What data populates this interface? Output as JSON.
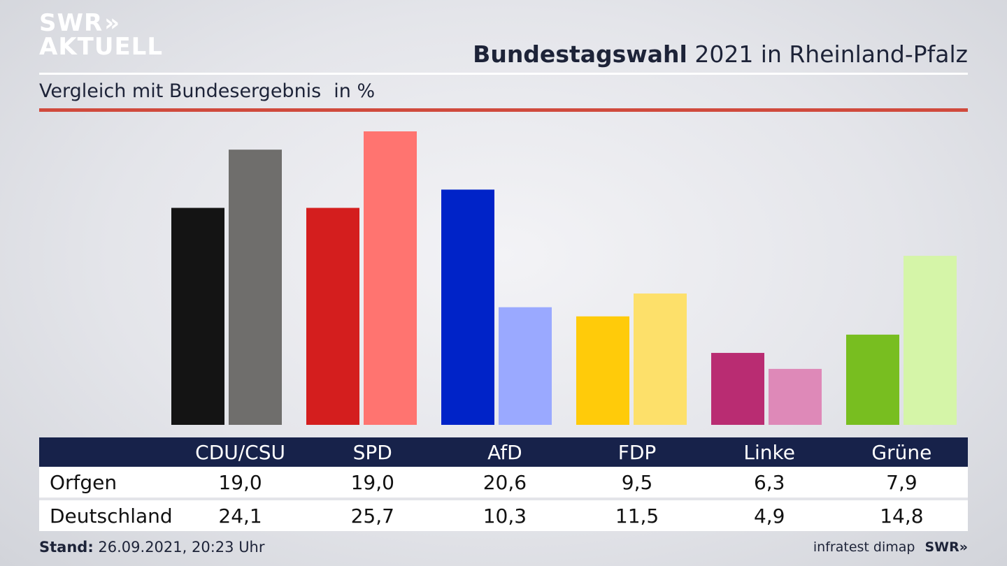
{
  "brand": {
    "logo_line1": "SWR",
    "logo_line2": "AKTUELL",
    "logo_arrows": "»"
  },
  "header": {
    "title_bold": "Bundestagswahl",
    "title_rest": "2021 in Rheinland-Pfalz",
    "subtitle": "Vergleich mit Bundesergebnis",
    "unit": "in %"
  },
  "chart_data": {
    "type": "bar",
    "categories": [
      "CDU/CSU",
      "SPD",
      "AfD",
      "FDP",
      "Linke",
      "Grüne"
    ],
    "series": [
      {
        "name": "Orfgen",
        "values": [
          19.0,
          19.0,
          20.6,
          9.5,
          6.3,
          7.9
        ]
      },
      {
        "name": "Deutschland",
        "values": [
          24.1,
          25.7,
          10.3,
          11.5,
          4.9,
          14.8
        ]
      }
    ],
    "colors": {
      "Orfgen": [
        "#141414",
        "#d41e1e",
        "#0023c8",
        "#ffcb0a",
        "#b92c72",
        "#78be20"
      ],
      "Deutschland": [
        "#6f6e6c",
        "#ff7470",
        "#9aa9ff",
        "#fde06a",
        "#de89b8",
        "#d5f5a8"
      ]
    },
    "ylim": [
      0,
      25.7
    ],
    "grid": false
  },
  "table": {
    "headers": [
      "",
      "CDU/CSU",
      "SPD",
      "AfD",
      "FDP",
      "Linke",
      "Grüne"
    ],
    "rows": [
      {
        "label": "Orfgen",
        "values": [
          "19,0",
          "19,0",
          "20,6",
          "9,5",
          "6,3",
          "7,9"
        ]
      },
      {
        "label": "Deutschland",
        "values": [
          "24,1",
          "25,7",
          "10,3",
          "11,5",
          "4,9",
          "14,8"
        ]
      }
    ]
  },
  "footer": {
    "stand_label": "Stand:",
    "stand_value": "26.09.2021, 20:23 Uhr",
    "source": "infratest dimap",
    "brand": "SWR»"
  }
}
